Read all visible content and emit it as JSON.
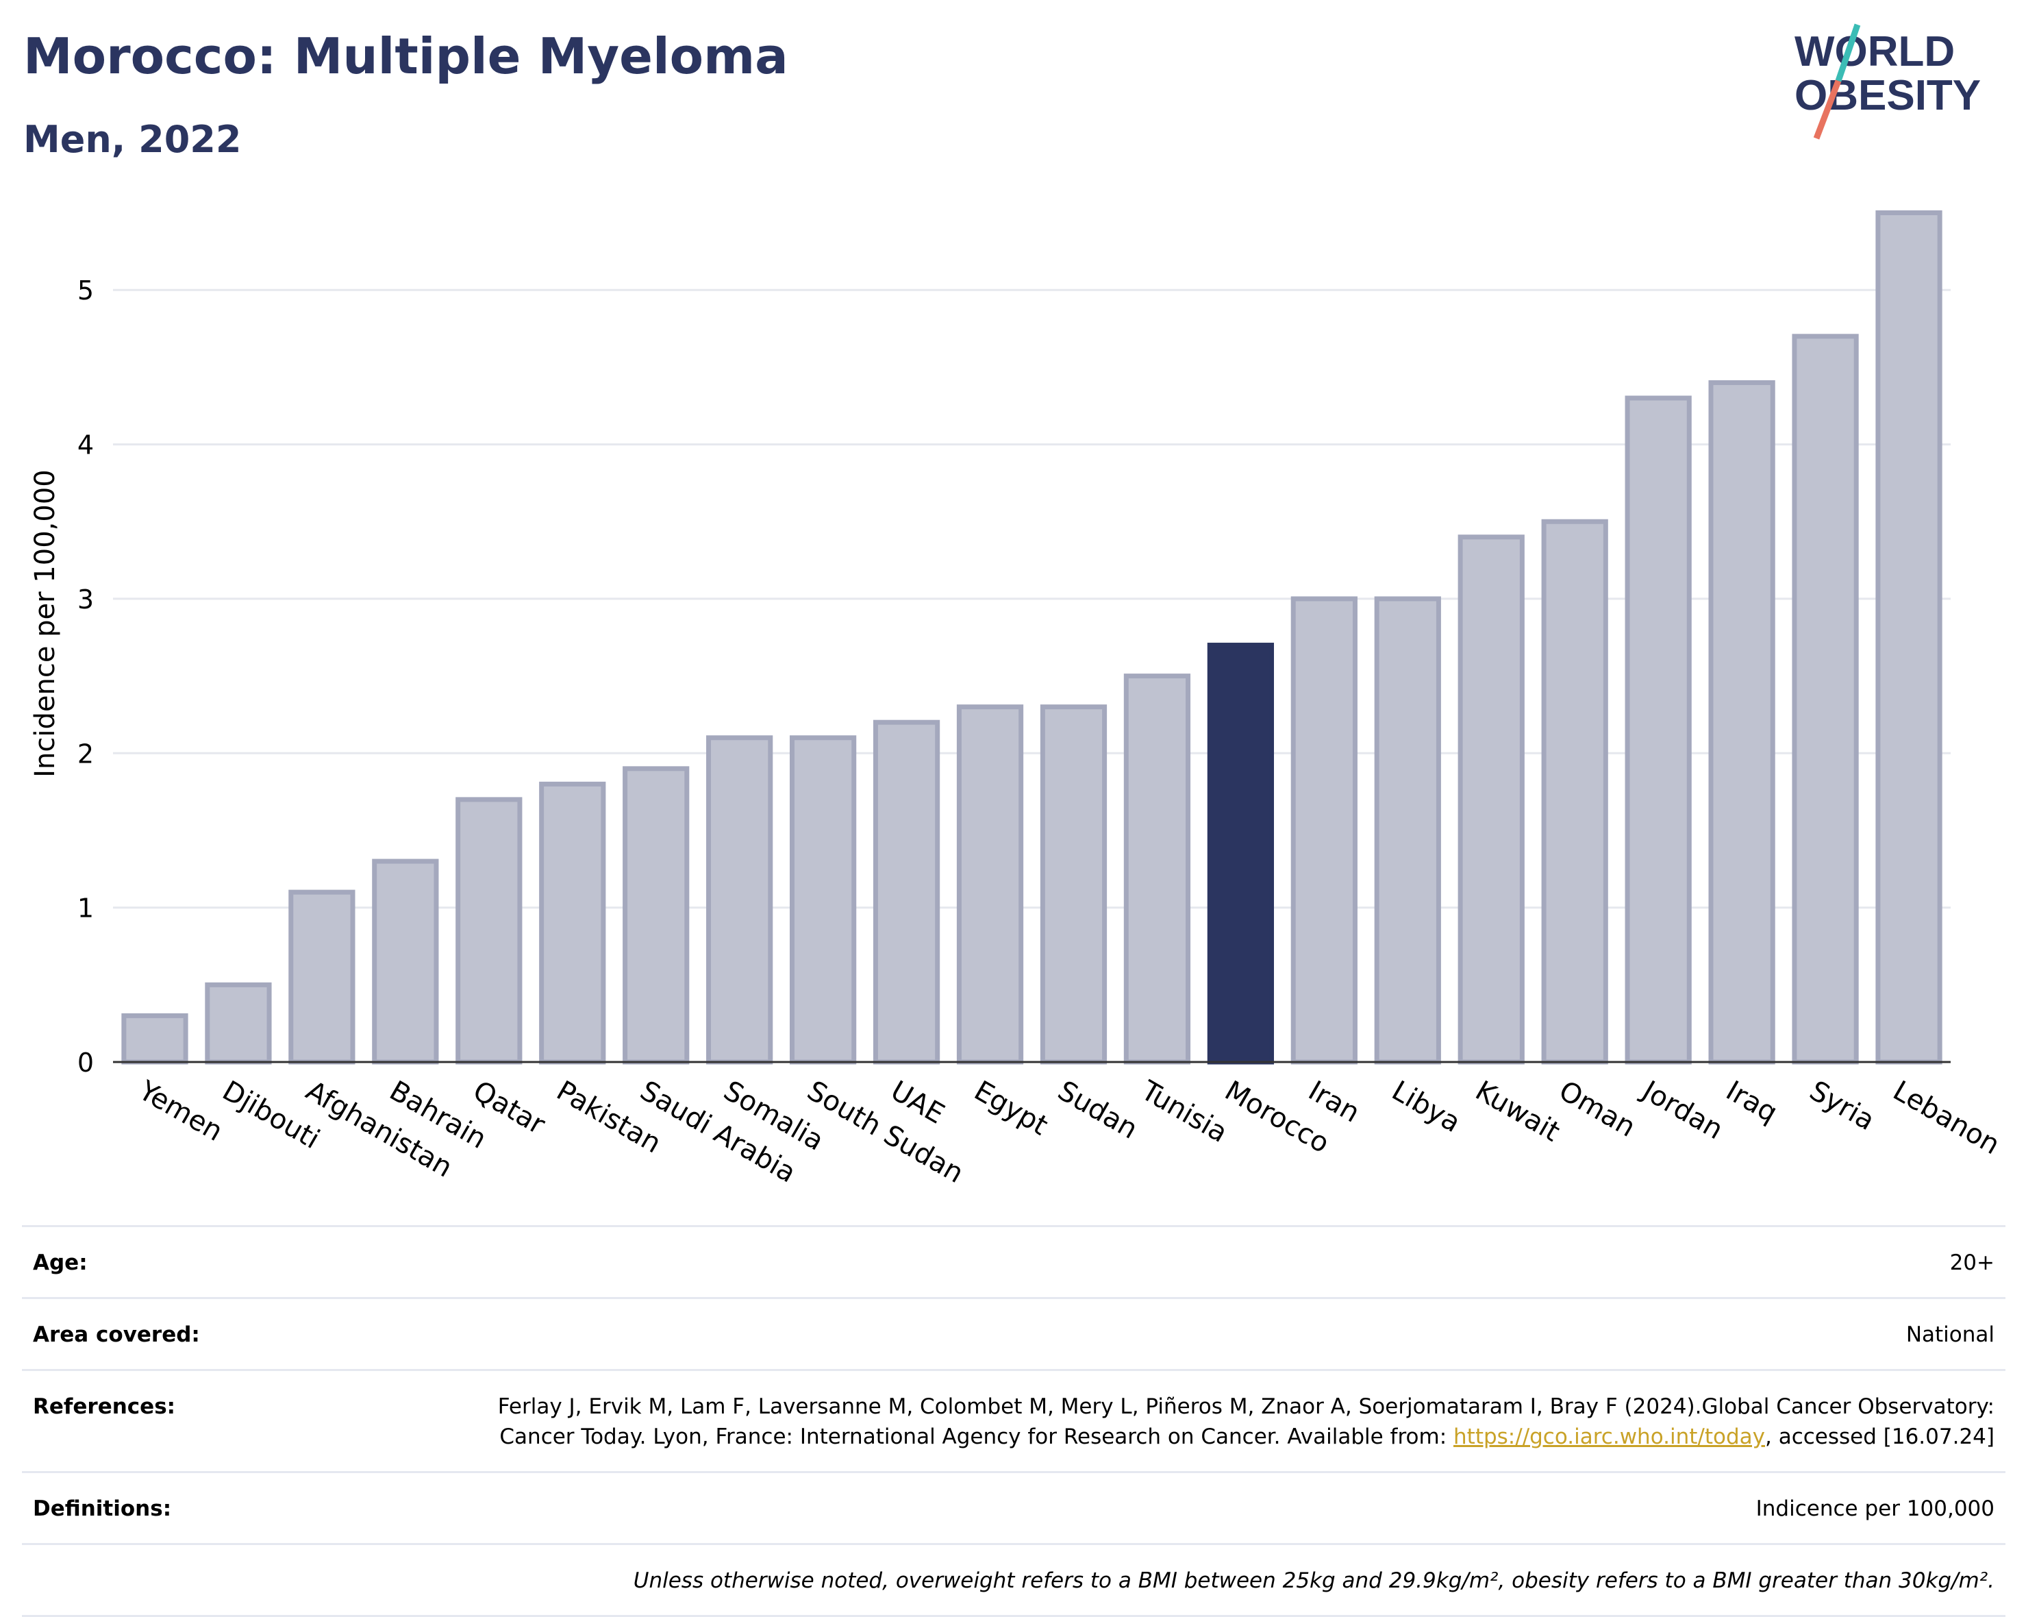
{
  "header": {
    "title": "Morocco: Multiple Myeloma",
    "subtitle": "Men, 2022",
    "logo_line1": "WORLD",
    "logo_line2": "OBESITY"
  },
  "colors": {
    "bar": "#bfc2d0",
    "bar_border": "#a4a8bd",
    "highlight": "#2b3560",
    "grid": "#e6e8ee",
    "title": "#2b3560",
    "logo_slash_teal": "#3bbcb5",
    "logo_slash_red": "#e8735f"
  },
  "chart_data": {
    "type": "bar",
    "title": "Morocco: Multiple Myeloma",
    "subtitle": "Men, 2022",
    "xlabel": "",
    "ylabel": "Incidence per 100,000",
    "ylim": [
      0,
      5.6
    ],
    "yticks": [
      0,
      1,
      2,
      3,
      4,
      5
    ],
    "grid": true,
    "highlight": "Morocco",
    "categories": [
      "Yemen",
      "Djibouti",
      "Afghanistan",
      "Bahrain",
      "Qatar",
      "Pakistan",
      "Saudi Arabia",
      "Somalia",
      "South Sudan",
      "UAE",
      "Egypt",
      "Sudan",
      "Tunisia",
      "Morocco",
      "Iran",
      "Libya",
      "Kuwait",
      "Oman",
      "Jordan",
      "Iraq",
      "Syria",
      "Lebanon"
    ],
    "values": [
      0.3,
      0.5,
      1.1,
      1.3,
      1.7,
      1.8,
      1.9,
      2.1,
      2.1,
      2.2,
      2.3,
      2.3,
      2.5,
      2.7,
      3.0,
      3.0,
      3.4,
      3.5,
      4.3,
      4.4,
      4.7,
      5.5
    ]
  },
  "info": {
    "age_label": "Age:",
    "age_value": "20+",
    "area_label": "Area covered:",
    "area_value": "National",
    "references_label": "References:",
    "references_text": "Ferlay J, Ervik M, Lam F, Laversanne M, Colombet M, Mery L, Piñeros M, Znaor A, Soerjomataram I, Bray F (2024).Global Cancer Observatory: Cancer Today. Lyon, France: International Agency for Research on Cancer. Available from:",
    "references_link": "https://gco.iarc.who.int/today",
    "references_suffix": ", accessed [16.07.24]",
    "definitions_label": "Definitions:",
    "definitions_value": "Indicence per 100,000",
    "note": "Unless otherwise noted, overweight refers to a BMI between 25kg and 29.9kg/m², obesity refers to a BMI greater than 30kg/m²."
  }
}
